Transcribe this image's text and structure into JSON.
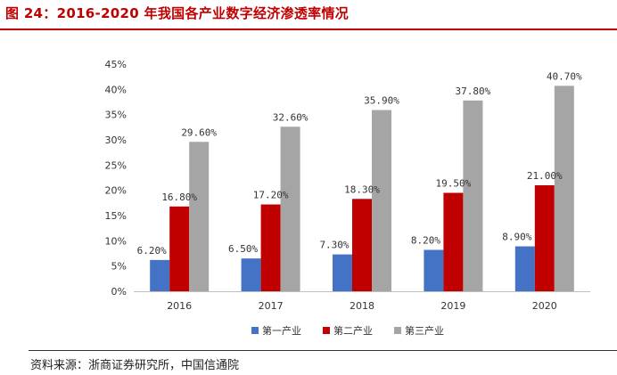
{
  "header": {
    "title": "图 24：2016-2020 年我国各产业数字经济渗透率情况"
  },
  "footer": {
    "source": "资料来源：浙商证券研究所，中国信通院"
  },
  "colors": {
    "title": "#c00000",
    "series": [
      "#4472c4",
      "#c00000",
      "#a5a5a5"
    ],
    "axis_text": "#333333"
  },
  "chart_data": {
    "type": "bar",
    "title": "2016-2020 年我国各产业数字经济渗透率情况",
    "xlabel": "",
    "ylabel": "",
    "categories": [
      "2016",
      "2017",
      "2018",
      "2019",
      "2020"
    ],
    "series": [
      {
        "name": "第一产业",
        "values": [
          6.2,
          6.5,
          7.3,
          8.2,
          8.9
        ],
        "labels": [
          "6.20%",
          "6.50%",
          "7.30%",
          "8.20%",
          "8.90%"
        ]
      },
      {
        "name": "第二产业",
        "values": [
          16.8,
          17.2,
          18.3,
          19.5,
          21.0
        ],
        "labels": [
          "16.80%",
          "17.20%",
          "18.30%",
          "19.50%",
          "21.00%"
        ]
      },
      {
        "name": "第三产业",
        "values": [
          29.6,
          32.6,
          35.9,
          37.8,
          40.7
        ],
        "labels": [
          "29.60%",
          "32.60%",
          "35.90%",
          "37.80%",
          "40.70%"
        ]
      }
    ],
    "ylim": [
      0,
      45
    ],
    "yticks": [
      0,
      5,
      10,
      15,
      20,
      25,
      30,
      35,
      40,
      45
    ],
    "ytick_labels": [
      "0%",
      "5%",
      "10%",
      "15%",
      "20%",
      "25%",
      "30%",
      "35%",
      "40%",
      "45%"
    ],
    "grid": false,
    "legend": "bottom"
  }
}
